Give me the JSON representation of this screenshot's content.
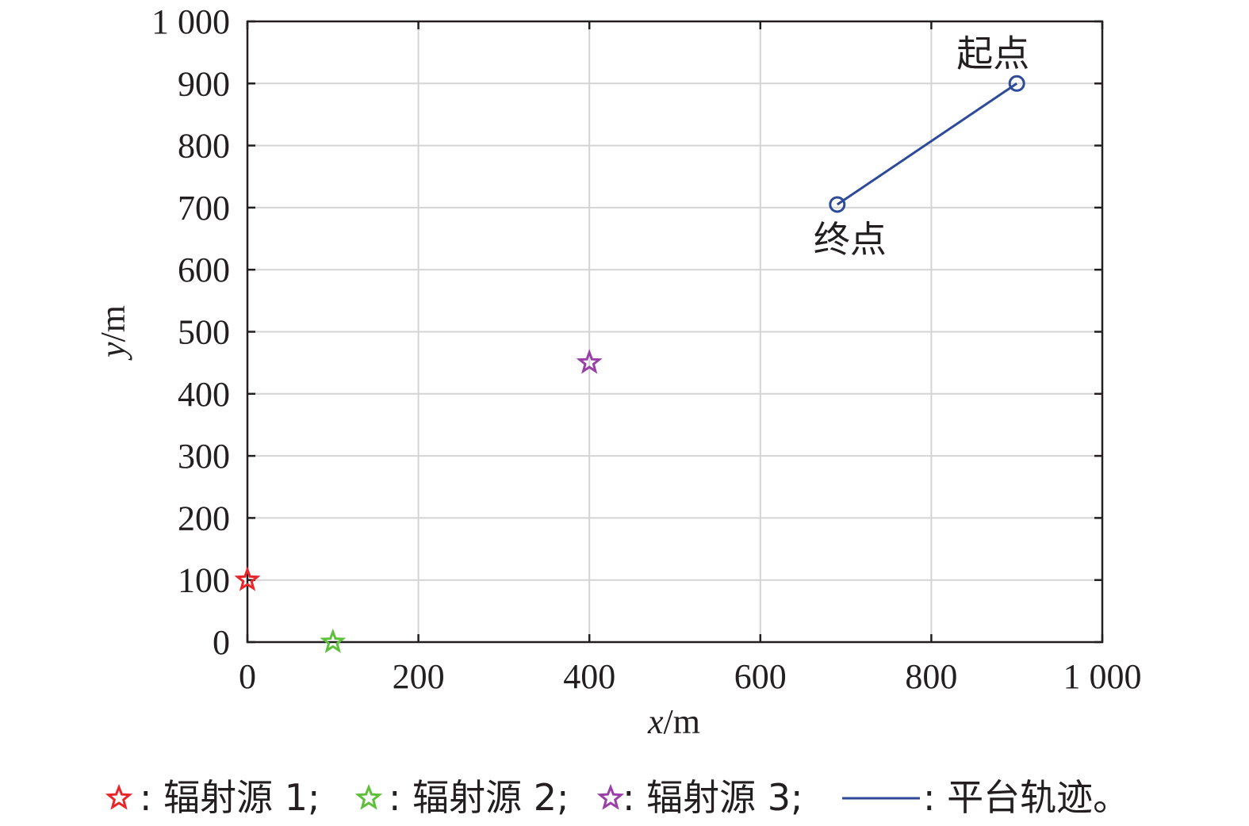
{
  "chart_data": {
    "type": "scatter",
    "xlabel_var": "x",
    "xlabel_unit": "/m",
    "ylabel_var": "y",
    "ylabel_unit": "/m",
    "xlim": [
      0,
      1000
    ],
    "ylim": [
      0,
      1000
    ],
    "xticks": [
      0,
      200,
      400,
      600,
      800,
      1000
    ],
    "xtick_labels": [
      "0",
      "200",
      "400",
      "600",
      "800",
      "1 000"
    ],
    "yticks": [
      0,
      100,
      200,
      300,
      400,
      500,
      600,
      700,
      800,
      900,
      1000
    ],
    "ytick_labels": [
      "0",
      "100",
      "200",
      "300",
      "400",
      "500",
      "600",
      "700",
      "800",
      "900",
      "1 000"
    ],
    "grid": true,
    "sources": [
      {
        "name": "辐射源 1",
        "x": 0,
        "y": 100,
        "color": "#e8262b"
      },
      {
        "name": "辐射源 2",
        "x": 100,
        "y": 0,
        "color": "#5dbf3a"
      },
      {
        "name": "辐射源 3",
        "x": 400,
        "y": 450,
        "color": "#9b3fa8"
      }
    ],
    "trajectory": {
      "name": "平台轨迹",
      "color": "#2e4a9a",
      "start": {
        "x": 900,
        "y": 900,
        "label": "起点"
      },
      "end": {
        "x": 690,
        "y": 705,
        "label": "终点"
      }
    },
    "legend_placement": "bottom",
    "legend": [
      {
        "text": ": 辐射源 1;"
      },
      {
        "text": ": 辐射源 2;"
      },
      {
        "text": ": 辐射源 3;"
      },
      {
        "text": ": 平台轨迹。"
      }
    ]
  }
}
